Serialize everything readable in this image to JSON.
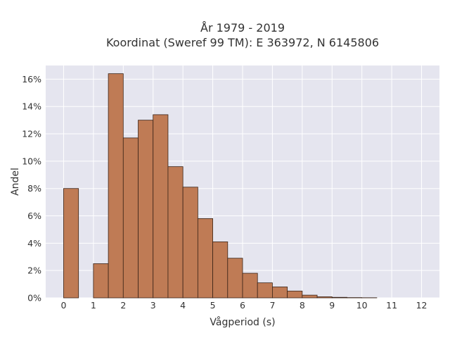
{
  "chart_data": {
    "type": "bar",
    "title": "År 1979 - 2019",
    "subtitle": "Koordinat (Sweref 99 TM): E 363972, N 6145806",
    "xlabel": "Vågperiod (s)",
    "ylabel": "Andel",
    "xlim": [
      -0.6,
      12.6
    ],
    "ylim": [
      0,
      0.17
    ],
    "x_ticks": [
      0,
      1,
      2,
      3,
      4,
      5,
      6,
      7,
      8,
      9,
      10,
      11,
      12
    ],
    "y_ticks": [
      {
        "value": 0.0,
        "label": "0%"
      },
      {
        "value": 0.02,
        "label": "2%"
      },
      {
        "value": 0.04,
        "label": "4%"
      },
      {
        "value": 0.06,
        "label": "6%"
      },
      {
        "value": 0.08,
        "label": "8%"
      },
      {
        "value": 0.1,
        "label": "10%"
      },
      {
        "value": 0.12,
        "label": "12%"
      },
      {
        "value": 0.14,
        "label": "14%"
      },
      {
        "value": 0.16,
        "label": "16%"
      }
    ],
    "bin_width": 0.5,
    "bins": [
      {
        "start": 0.0,
        "value": 0.08
      },
      {
        "start": 1.0,
        "value": 0.025
      },
      {
        "start": 1.5,
        "value": 0.164
      },
      {
        "start": 2.0,
        "value": 0.117
      },
      {
        "start": 2.5,
        "value": 0.13
      },
      {
        "start": 3.0,
        "value": 0.134
      },
      {
        "start": 3.5,
        "value": 0.096
      },
      {
        "start": 4.0,
        "value": 0.081
      },
      {
        "start": 4.5,
        "value": 0.058
      },
      {
        "start": 5.0,
        "value": 0.041
      },
      {
        "start": 5.5,
        "value": 0.029
      },
      {
        "start": 6.0,
        "value": 0.018
      },
      {
        "start": 6.5,
        "value": 0.011
      },
      {
        "start": 7.0,
        "value": 0.008
      },
      {
        "start": 7.5,
        "value": 0.005
      },
      {
        "start": 8.0,
        "value": 0.002
      },
      {
        "start": 8.5,
        "value": 0.0008
      },
      {
        "start": 9.0,
        "value": 0.0004
      },
      {
        "start": 9.5,
        "value": 0.0002
      },
      {
        "start": 10.0,
        "value": 0.0001
      }
    ],
    "grid": true,
    "colors": {
      "bar_fill": "#bf7b55",
      "bar_stroke": "#3a2418",
      "plot_background": "#e5e5ef",
      "grid": "#ffffff"
    }
  }
}
